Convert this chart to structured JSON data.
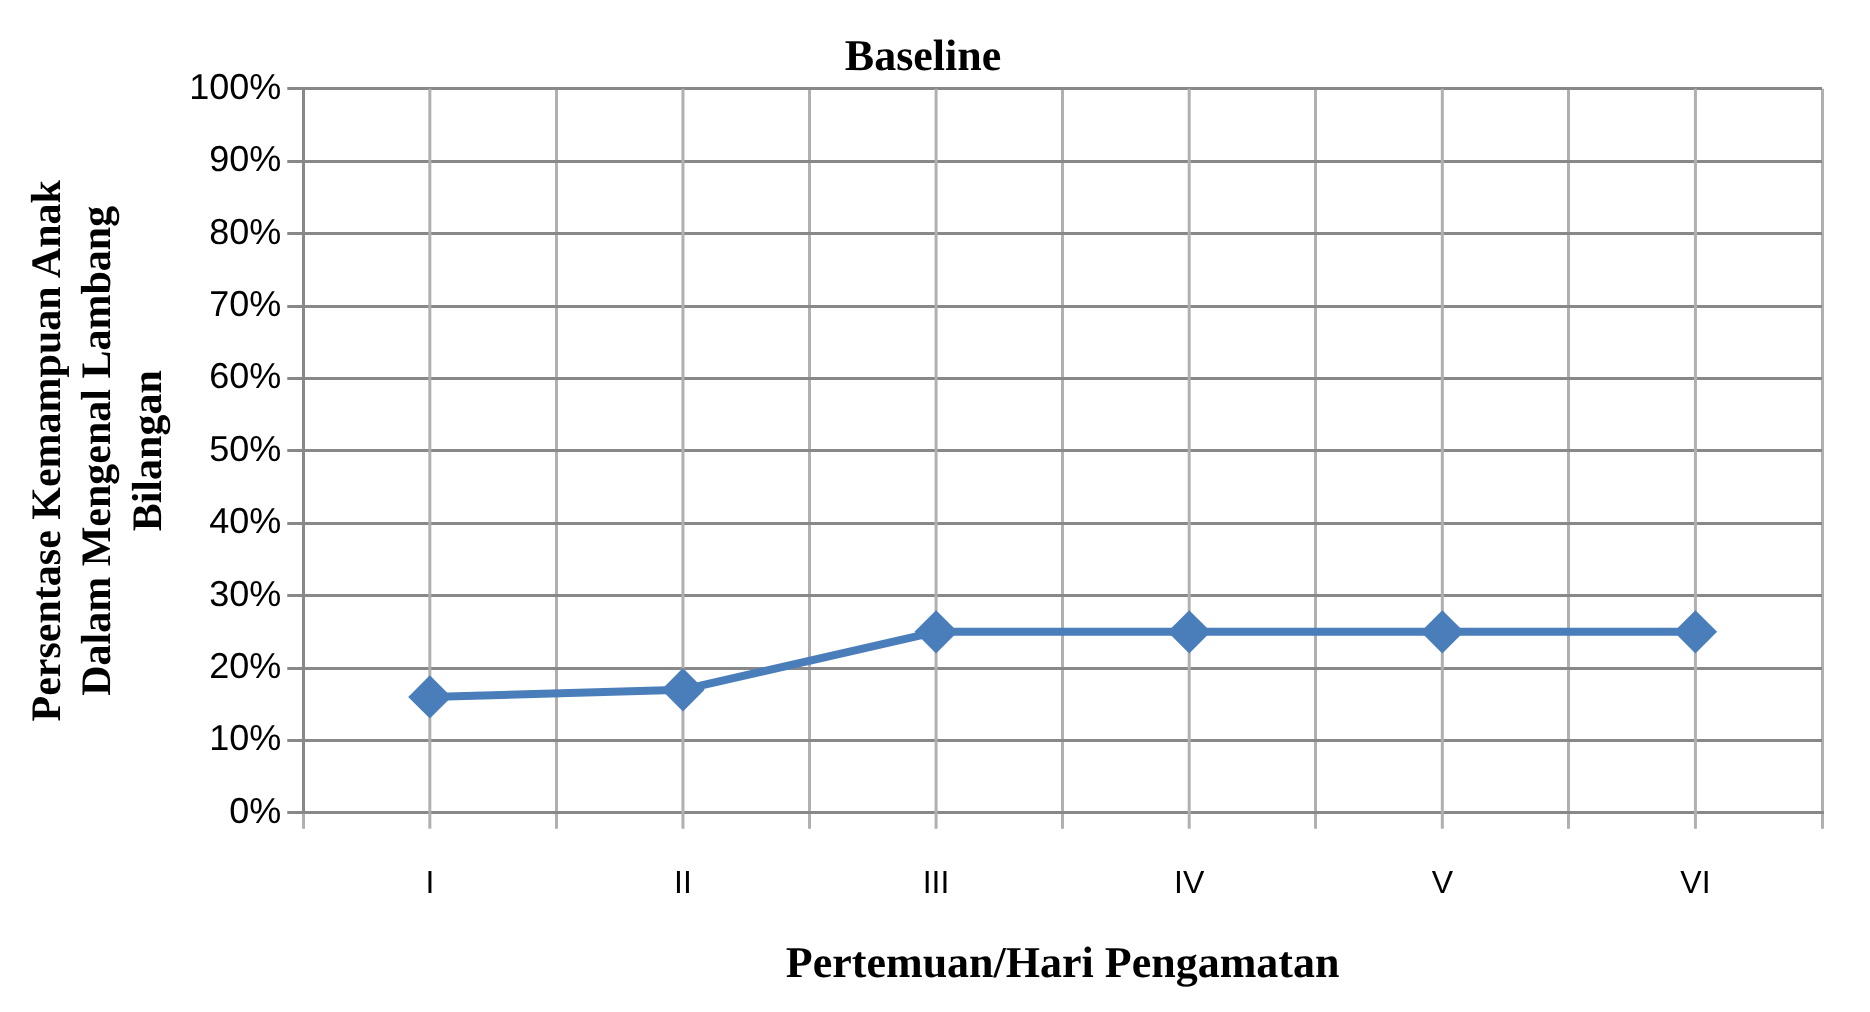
{
  "chart_data": {
    "type": "line",
    "title": "Baseline",
    "xlabel": "Pertemuan/Hari Pengamatan",
    "ylabel": "Persentase Kemampuan Anak Dalam Mengenal Lambang Bilangan",
    "categories": [
      "I",
      "II",
      "III",
      "IV",
      "V",
      "VI"
    ],
    "series": [
      {
        "color": "#4a7ebb",
        "values": [
          16,
          17,
          25,
          25,
          25,
          25
        ]
      }
    ],
    "ylim": [
      0,
      100
    ],
    "yticks": [
      {
        "value": 0,
        "label": "0%"
      },
      {
        "value": 10,
        "label": "10%"
      },
      {
        "value": 20,
        "label": "20%"
      },
      {
        "value": 30,
        "label": "30%"
      },
      {
        "value": 40,
        "label": "40%"
      },
      {
        "value": 50,
        "label": "50%"
      },
      {
        "value": 60,
        "label": "60%"
      },
      {
        "value": 70,
        "label": "70%"
      },
      {
        "value": 80,
        "label": "80%"
      },
      {
        "value": 90,
        "label": "90%"
      },
      {
        "value": 100,
        "label": "100%"
      }
    ],
    "grid": true,
    "legend": false,
    "marker": "diamond",
    "line_style": "solid"
  }
}
